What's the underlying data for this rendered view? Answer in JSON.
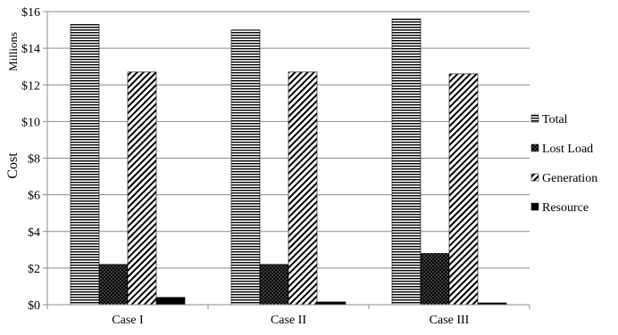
{
  "chart_data": {
    "type": "bar",
    "title": "",
    "xlabel": "",
    "ylabel": "Cost",
    "units_label": "Millions",
    "categories": [
      "Case I",
      "Case II",
      "Case III"
    ],
    "series": [
      {
        "name": "Total",
        "values": [
          15.3,
          15.0,
          15.6
        ],
        "pattern": "horizontal-lines"
      },
      {
        "name": "Lost Load",
        "values": [
          2.2,
          2.2,
          2.8
        ],
        "pattern": "dots"
      },
      {
        "name": "Generation",
        "values": [
          12.7,
          12.7,
          12.6
        ],
        "pattern": "diagonal-lines"
      },
      {
        "name": "Resource",
        "values": [
          0.4,
          0.15,
          0.1
        ],
        "pattern": "solid"
      }
    ],
    "ylim": [
      0,
      16
    ],
    "yticks": [
      0,
      2,
      4,
      6,
      8,
      10,
      12,
      14,
      16
    ],
    "ytick_labels": [
      "$0",
      "$2",
      "$4",
      "$6",
      "$8",
      "$10",
      "$12",
      "$14",
      "$16"
    ],
    "grid": true,
    "legend_position": "right"
  }
}
